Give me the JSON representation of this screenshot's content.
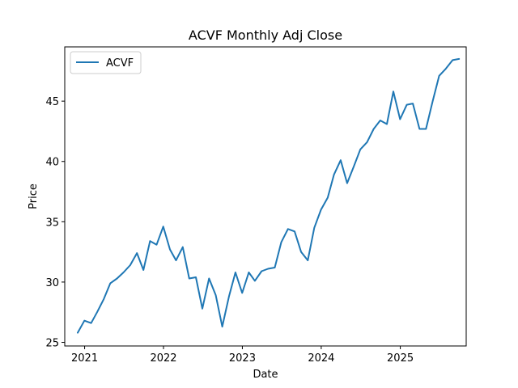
{
  "chart_data": {
    "type": "line",
    "title": "ACVF Monthly Adj Close",
    "xlabel": "Date",
    "ylabel": "Price",
    "xlim": [
      "2020-10-01",
      "2025-11-02"
    ],
    "ylim": [
      24.7,
      49.5
    ],
    "x_ticks": [
      {
        "date": "2021-01-01",
        "label": "2021"
      },
      {
        "date": "2022-01-01",
        "label": "2022"
      },
      {
        "date": "2023-01-01",
        "label": "2023"
      },
      {
        "date": "2024-01-01",
        "label": "2024"
      },
      {
        "date": "2025-01-01",
        "label": "2025"
      }
    ],
    "y_ticks": [
      25,
      30,
      35,
      40,
      45
    ],
    "grid": false,
    "legend": {
      "position": "top-left"
    },
    "series": [
      {
        "name": "ACVF",
        "color": "#1f77b4",
        "x": [
          "2020-11-30",
          "2020-12-31",
          "2021-01-31",
          "2021-02-28",
          "2021-03-31",
          "2021-04-30",
          "2021-05-31",
          "2021-06-30",
          "2021-07-31",
          "2021-08-31",
          "2021-09-30",
          "2021-10-31",
          "2021-11-30",
          "2021-12-31",
          "2022-01-31",
          "2022-02-28",
          "2022-03-31",
          "2022-04-30",
          "2022-05-31",
          "2022-06-30",
          "2022-07-31",
          "2022-08-31",
          "2022-09-30",
          "2022-10-31",
          "2022-11-30",
          "2022-12-31",
          "2023-01-31",
          "2023-02-28",
          "2023-03-31",
          "2023-04-30",
          "2023-05-31",
          "2023-06-30",
          "2023-07-31",
          "2023-08-31",
          "2023-09-30",
          "2023-10-31",
          "2023-11-30",
          "2023-12-31",
          "2024-01-31",
          "2024-02-29",
          "2024-03-31",
          "2024-04-30",
          "2024-05-31",
          "2024-06-30",
          "2024-07-31",
          "2024-08-31",
          "2024-09-30",
          "2024-10-31",
          "2024-11-30",
          "2024-12-31",
          "2025-01-31",
          "2025-02-28",
          "2025-03-31",
          "2025-04-30",
          "2025-05-31",
          "2025-06-30",
          "2025-07-31",
          "2025-08-31",
          "2025-09-30"
        ],
        "values": [
          25.8,
          26.8,
          26.6,
          27.5,
          28.6,
          29.9,
          30.3,
          30.8,
          31.4,
          32.4,
          31.0,
          33.4,
          33.1,
          34.6,
          32.7,
          31.8,
          32.9,
          30.3,
          30.4,
          27.8,
          30.3,
          28.9,
          26.3,
          28.8,
          30.8,
          29.1,
          30.8,
          30.1,
          30.9,
          31.1,
          31.2,
          33.3,
          34.4,
          34.2,
          32.5,
          31.8,
          34.5,
          36.0,
          37.0,
          38.9,
          40.1,
          38.2,
          39.6,
          41.0,
          41.6,
          42.7,
          43.4,
          43.1,
          45.8,
          43.5,
          44.7,
          44.8,
          42.7,
          42.7,
          45.0,
          47.1,
          47.7,
          48.4,
          48.5
        ]
      }
    ]
  }
}
